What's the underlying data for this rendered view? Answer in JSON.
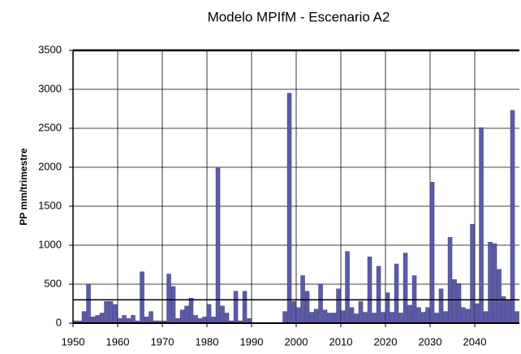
{
  "chart_data": {
    "type": "bar",
    "title": "Modelo MPIfM - Escenario A2",
    "y_label": "PP mm/trimestre",
    "x": [
      1950,
      1951,
      1952,
      1953,
      1954,
      1955,
      1956,
      1957,
      1958,
      1959,
      1960,
      1961,
      1962,
      1963,
      1964,
      1965,
      1966,
      1967,
      1968,
      1969,
      1970,
      1971,
      1972,
      1973,
      1974,
      1975,
      1976,
      1977,
      1978,
      1979,
      1980,
      1981,
      1982,
      1983,
      1984,
      1985,
      1986,
      1987,
      1988,
      1989,
      1990,
      1991,
      1992,
      1993,
      1994,
      1995,
      1996,
      1997,
      1998,
      1999,
      2000,
      2001,
      2002,
      2003,
      2004,
      2005,
      2006,
      2007,
      2008,
      2009,
      2010,
      2011,
      2012,
      2013,
      2014,
      2015,
      2016,
      2017,
      2018,
      2019,
      2020,
      2021,
      2022,
      2023,
      2024,
      2025,
      2026,
      2027,
      2028,
      2029,
      2030,
      2031,
      2032,
      2033,
      2034,
      2035,
      2036,
      2037,
      2038,
      2039,
      2040,
      2041,
      2042,
      2043,
      2044,
      2045,
      2046,
      2047,
      2048,
      2049
    ],
    "values": [
      30,
      30,
      150,
      500,
      80,
      100,
      130,
      280,
      280,
      240,
      60,
      100,
      60,
      100,
      30,
      660,
      80,
      150,
      30,
      30,
      30,
      630,
      470,
      60,
      170,
      220,
      320,
      100,
      60,
      80,
      240,
      80,
      1990,
      220,
      130,
      30,
      410,
      30,
      410,
      60,
      null,
      null,
      null,
      null,
      null,
      null,
      null,
      150,
      2950,
      280,
      200,
      610,
      410,
      140,
      180,
      500,
      170,
      130,
      130,
      440,
      160,
      920,
      200,
      120,
      280,
      140,
      850,
      130,
      730,
      140,
      390,
      140,
      760,
      130,
      900,
      230,
      610,
      200,
      140,
      200,
      1810,
      130,
      440,
      150,
      1100,
      560,
      510,
      200,
      180,
      1270,
      250,
      2510,
      150,
      1040,
      1020,
      690,
      340,
      290,
      2730,
      150
    ],
    "color": "#5b5ba8",
    "reference_line": 300,
    "xlim": [
      1950,
      2050
    ],
    "xticks": [
      1950,
      1960,
      1970,
      1980,
      1990,
      2000,
      2010,
      2020,
      2030,
      2040
    ],
    "ylim": [
      0,
      3500
    ],
    "yticks": [
      0,
      500,
      1000,
      1500,
      2000,
      2500,
      3000,
      3500
    ],
    "grid": true
  }
}
